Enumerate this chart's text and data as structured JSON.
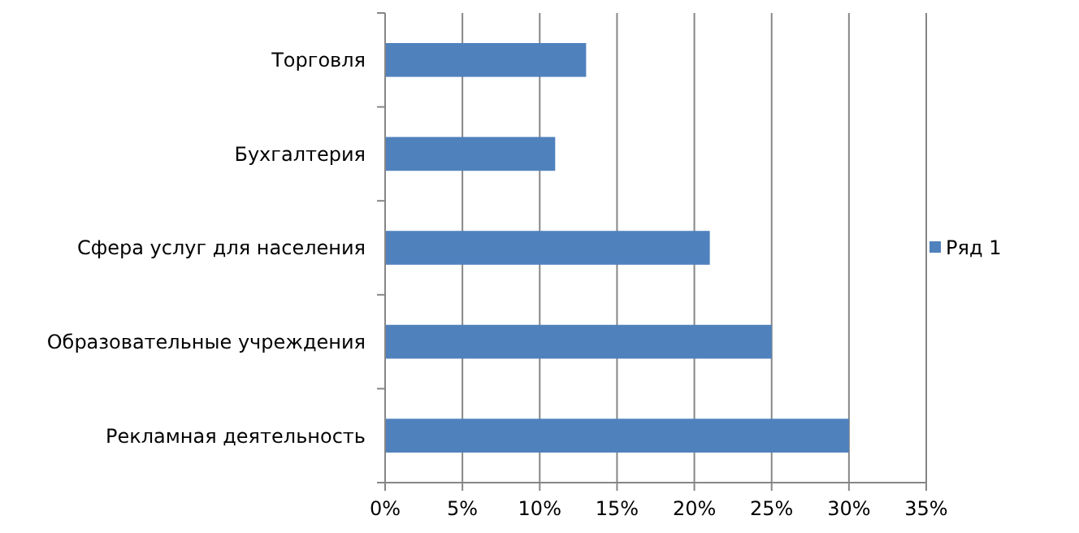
{
  "chart_data": {
    "type": "bar",
    "orientation": "horizontal",
    "categories": [
      "Торговля",
      "Бухгалтерия",
      "Сфера услуг для населения",
      "Образовательные учреждения",
      "Рекламная деятельность"
    ],
    "series": [
      {
        "name": "Ряд 1",
        "color": "#4f81bd",
        "values": [
          13,
          11,
          21,
          25,
          30
        ]
      }
    ],
    "xlim": [
      0,
      35
    ],
    "xticks": [
      {
        "value": 0,
        "label": "0%"
      },
      {
        "value": 5,
        "label": "5%"
      },
      {
        "value": 10,
        "label": "10%"
      },
      {
        "value": 15,
        "label": "15%"
      },
      {
        "value": 20,
        "label": "20%"
      },
      {
        "value": 25,
        "label": "25%"
      },
      {
        "value": 30,
        "label": "30%"
      },
      {
        "value": 35,
        "label": "35%"
      }
    ],
    "grid": "x",
    "legend": "right"
  }
}
